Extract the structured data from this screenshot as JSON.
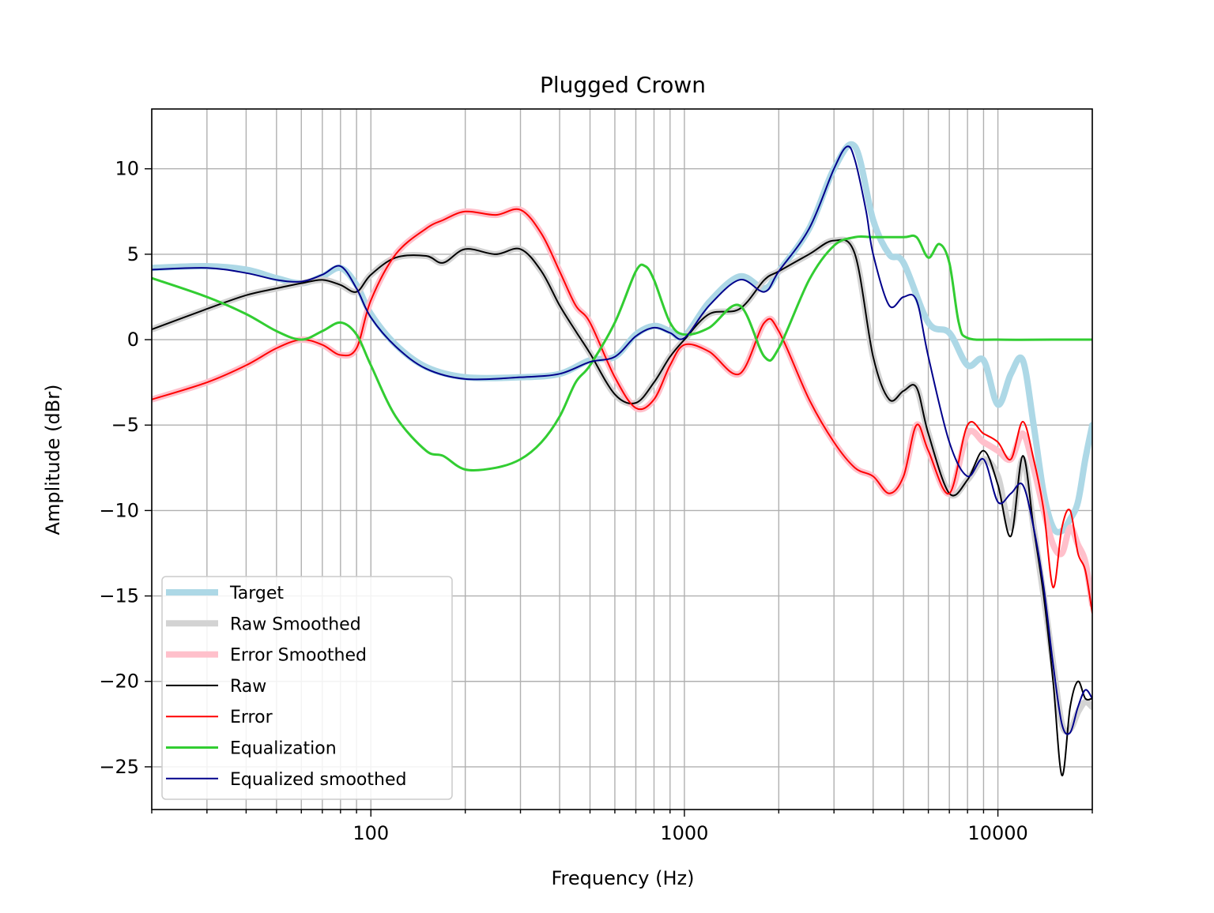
{
  "chart_data": {
    "type": "line",
    "title": "Plugged Crown",
    "xlabel": "Frequency (Hz)",
    "ylabel": "Amplitude (dBr)",
    "xscale": "log",
    "xlim": [
      20,
      20000
    ],
    "ylim": [
      -27.5,
      13.5
    ],
    "grid": true,
    "legend_position": "lower-left",
    "x_ticks": [
      {
        "value": 100,
        "label": "100"
      },
      {
        "value": 1000,
        "label": "1000"
      },
      {
        "value": 10000,
        "label": "10000"
      }
    ],
    "y_ticks": [
      {
        "value": 10,
        "label": "10"
      },
      {
        "value": 5,
        "label": "5"
      },
      {
        "value": 0,
        "label": "0"
      },
      {
        "value": -5,
        "label": "−5"
      },
      {
        "value": -10,
        "label": "−10"
      },
      {
        "value": -15,
        "label": "−15"
      },
      {
        "value": -20,
        "label": "−20"
      },
      {
        "value": -25,
        "label": "−25"
      }
    ],
    "series": [
      {
        "name": "Target",
        "color": "#add8e6",
        "width": 8,
        "x": [
          20,
          30,
          40,
          50,
          60,
          70,
          80,
          90,
          100,
          120,
          150,
          200,
          300,
          400,
          500,
          600,
          700,
          800,
          900,
          1000,
          1200,
          1500,
          1800,
          2000,
          2500,
          3000,
          3500,
          4000,
          4500,
          5000,
          6000,
          7000,
          8000,
          9000,
          10000,
          11000,
          12000,
          13000,
          14000,
          15000,
          16000,
          17000,
          18000,
          19000,
          20000
        ],
        "y": [
          4.2,
          4.3,
          4.1,
          3.6,
          3.3,
          3.7,
          4.2,
          3.2,
          1.5,
          -0.3,
          -1.6,
          -2.2,
          -2.2,
          -2.0,
          -1.2,
          -1.0,
          0.3,
          0.8,
          0.5,
          0.2,
          2.2,
          3.7,
          3.0,
          4.0,
          6.5,
          10.0,
          11.3,
          7.0,
          5.0,
          4.5,
          1.0,
          0.4,
          -1.5,
          -1.2,
          -3.8,
          -2.0,
          -1.2,
          -5.0,
          -9.0,
          -11.0,
          -11.2,
          -10.5,
          -9.5,
          -7.0,
          -5.0
        ]
      },
      {
        "name": "Raw Smoothed",
        "color": "#d3d3d3",
        "width": 8,
        "x": [
          20,
          30,
          40,
          50,
          60,
          70,
          80,
          90,
          100,
          120,
          150,
          170,
          200,
          250,
          300,
          350,
          400,
          450,
          500,
          600,
          700,
          800,
          900,
          1000,
          1200,
          1500,
          1800,
          2000,
          2500,
          3000,
          3500,
          4000,
          4500,
          5000,
          5500,
          6000,
          7000,
          8000,
          9000,
          10000,
          11000,
          12000,
          13000,
          14000,
          15000,
          16000,
          17000,
          18000,
          19000,
          20000
        ],
        "y": [
          0.6,
          1.8,
          2.6,
          3.0,
          3.3,
          3.5,
          3.2,
          2.8,
          3.8,
          4.8,
          4.9,
          4.5,
          5.3,
          5.0,
          5.3,
          4.0,
          2.0,
          0.5,
          -0.8,
          -3.2,
          -3.7,
          -2.5,
          -1.0,
          0.0,
          1.5,
          1.8,
          3.5,
          4.0,
          5.0,
          5.8,
          5.0,
          -1.0,
          -3.5,
          -3.0,
          -2.8,
          -5.5,
          -9.0,
          -8.2,
          -7.0,
          -8.0,
          -11.0,
          -7.0,
          -11.0,
          -15.0,
          -19.0,
          -22.5,
          -22.8,
          -21.8,
          -21.2,
          -21.5
        ]
      },
      {
        "name": "Error Smoothed",
        "color": "#ffc0cb",
        "width": 8,
        "x": [
          20,
          30,
          40,
          50,
          60,
          70,
          80,
          90,
          100,
          120,
          150,
          170,
          200,
          250,
          300,
          350,
          400,
          450,
          500,
          600,
          700,
          800,
          900,
          1000,
          1200,
          1500,
          1800,
          2000,
          2500,
          3000,
          3500,
          4000,
          4500,
          5000,
          5500,
          6000,
          7000,
          8000,
          9000,
          10000,
          11000,
          12000,
          13000,
          14000,
          15000,
          16000,
          17000,
          18000,
          19000,
          20000
        ],
        "y": [
          -3.5,
          -2.5,
          -1.5,
          -0.5,
          0.0,
          -0.3,
          -0.9,
          -0.5,
          2.3,
          5.0,
          6.5,
          7.0,
          7.5,
          7.3,
          7.6,
          6.2,
          4.0,
          2.0,
          1.0,
          -2.2,
          -4.0,
          -3.5,
          -1.5,
          -0.3,
          -0.7,
          -2.0,
          1.0,
          0.5,
          -3.5,
          -6.0,
          -7.5,
          -8.0,
          -9.0,
          -8.0,
          -5.0,
          -6.5,
          -9.0,
          -5.5,
          -6.0,
          -6.5,
          -7.0,
          -5.5,
          -7.5,
          -10.0,
          -12.0,
          -12.5,
          -11.0,
          -12.0,
          -13.0,
          -15.5
        ]
      },
      {
        "name": "Raw",
        "color": "#000000",
        "width": 2,
        "x": [
          20,
          30,
          40,
          50,
          60,
          70,
          80,
          90,
          100,
          120,
          150,
          170,
          200,
          250,
          300,
          350,
          400,
          450,
          500,
          600,
          700,
          800,
          900,
          1000,
          1200,
          1500,
          1800,
          2000,
          2500,
          3000,
          3500,
          4000,
          4500,
          5000,
          5500,
          6000,
          7000,
          8000,
          9000,
          10000,
          11000,
          12000,
          13000,
          14000,
          15000,
          16000,
          17000,
          18000,
          19000,
          20000
        ],
        "y": [
          0.6,
          1.8,
          2.6,
          3.0,
          3.3,
          3.5,
          3.2,
          2.8,
          3.8,
          4.8,
          4.9,
          4.5,
          5.3,
          5.0,
          5.3,
          4.0,
          2.0,
          0.5,
          -0.8,
          -3.2,
          -3.7,
          -2.5,
          -1.0,
          0.0,
          1.5,
          1.8,
          3.5,
          4.0,
          5.0,
          5.8,
          5.0,
          -1.0,
          -3.5,
          -3.0,
          -2.8,
          -5.5,
          -9.0,
          -8.2,
          -6.5,
          -8.5,
          -11.5,
          -6.8,
          -11.0,
          -15.0,
          -20.0,
          -25.5,
          -21.5,
          -20.0,
          -21.0,
          -21.0
        ]
      },
      {
        "name": "Error",
        "color": "#ff0000",
        "width": 2,
        "x": [
          20,
          30,
          40,
          50,
          60,
          70,
          80,
          90,
          100,
          120,
          150,
          170,
          200,
          250,
          300,
          350,
          400,
          450,
          500,
          600,
          700,
          800,
          900,
          1000,
          1200,
          1500,
          1800,
          2000,
          2500,
          3000,
          3500,
          4000,
          4500,
          5000,
          5500,
          6000,
          7000,
          8000,
          9000,
          10000,
          11000,
          12000,
          13000,
          14000,
          15000,
          16000,
          17000,
          18000,
          19000,
          20000
        ],
        "y": [
          -3.5,
          -2.5,
          -1.5,
          -0.5,
          0.0,
          -0.3,
          -0.9,
          -0.5,
          2.3,
          5.0,
          6.5,
          7.0,
          7.5,
          7.3,
          7.6,
          6.2,
          4.0,
          2.0,
          1.0,
          -2.2,
          -4.0,
          -3.5,
          -1.5,
          -0.3,
          -0.7,
          -2.0,
          1.0,
          0.5,
          -3.5,
          -6.0,
          -7.5,
          -8.0,
          -9.0,
          -8.0,
          -5.0,
          -6.5,
          -9.0,
          -5.0,
          -5.5,
          -6.0,
          -7.0,
          -4.8,
          -7.0,
          -10.0,
          -14.5,
          -11.0,
          -10.0,
          -12.5,
          -13.5,
          -16.0
        ]
      },
      {
        "name": "Equalization",
        "color": "#32cd32",
        "width": 3,
        "x": [
          20,
          30,
          40,
          50,
          60,
          70,
          80,
          90,
          100,
          120,
          150,
          170,
          200,
          250,
          300,
          350,
          400,
          450,
          500,
          600,
          700,
          750,
          800,
          900,
          1000,
          1200,
          1500,
          1800,
          2000,
          2500,
          3000,
          3500,
          4000,
          5000,
          5500,
          6000,
          6500,
          7000,
          7500,
          8000,
          10000,
          15000,
          20000
        ],
        "y": [
          3.6,
          2.5,
          1.5,
          0.5,
          0.0,
          0.5,
          1.0,
          0.3,
          -1.5,
          -4.5,
          -6.5,
          -6.8,
          -7.6,
          -7.5,
          -7.0,
          -6.0,
          -4.5,
          -2.5,
          -1.5,
          1.0,
          4.0,
          4.3,
          3.5,
          1.0,
          0.3,
          0.7,
          2.0,
          -1.0,
          -0.5,
          3.5,
          5.5,
          6.0,
          6.0,
          6.0,
          6.0,
          4.8,
          5.6,
          4.5,
          1.0,
          0.1,
          0.0,
          0.0,
          0.0
        ]
      },
      {
        "name": "Equalized smoothed",
        "color": "#00008b",
        "width": 2,
        "x": [
          20,
          30,
          40,
          50,
          60,
          70,
          80,
          90,
          100,
          120,
          150,
          200,
          300,
          400,
          500,
          600,
          700,
          800,
          900,
          1000,
          1200,
          1500,
          1800,
          2000,
          2500,
          3000,
          3300,
          3500,
          3800,
          4000,
          4500,
          5000,
          5500,
          6000,
          7000,
          8000,
          9000,
          10000,
          11000,
          12000,
          13000,
          14000,
          15000,
          16000,
          17000,
          18000,
          19000,
          20000
        ],
        "y": [
          4.1,
          4.2,
          3.9,
          3.5,
          3.4,
          3.8,
          4.3,
          3.0,
          1.3,
          -0.4,
          -1.7,
          -2.3,
          -2.2,
          -2.0,
          -1.3,
          -1.0,
          0.2,
          0.7,
          0.4,
          0.1,
          2.0,
          3.5,
          2.8,
          4.0,
          6.5,
          10.0,
          11.3,
          10.5,
          7.5,
          5.0,
          2.0,
          2.5,
          2.3,
          -1.0,
          -6.0,
          -8.0,
          -7.0,
          -9.5,
          -9.0,
          -8.5,
          -11.0,
          -14.5,
          -19.0,
          -22.5,
          -23.0,
          -21.5,
          -20.5,
          -21.0
        ]
      }
    ]
  }
}
